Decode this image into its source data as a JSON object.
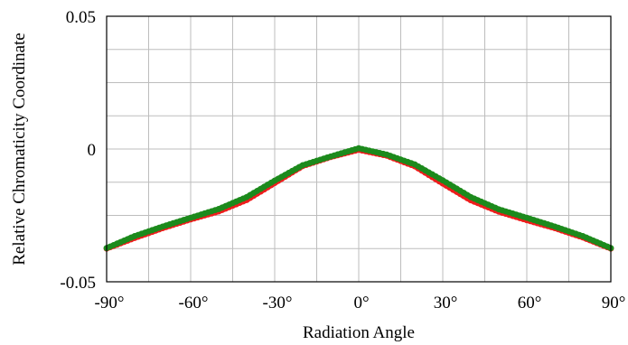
{
  "chart_data": {
    "type": "line",
    "xlabel": "Radiation Angle",
    "ylabel": "Relative Chromaticity Coordinate",
    "xlim": [
      -90,
      90
    ],
    "ylim": [
      -0.05,
      0.05
    ],
    "x_ticks": [
      -90,
      -60,
      -30,
      0,
      30,
      60,
      90
    ],
    "x_tick_labels": [
      "-90°",
      "-60°",
      "-30°",
      "0°",
      "30°",
      "60°",
      "90°"
    ],
    "y_ticks": [
      0.05,
      0,
      -0.05
    ],
    "y_tick_labels": [
      "0.05",
      "0",
      "-0.05"
    ],
    "grid": true,
    "grid_x_step": 15,
    "grid_y_step": 0.0125,
    "legend": "none",
    "series": [
      {
        "color": "#ee1c1c",
        "x": [
          -90,
          -80,
          -70,
          -60,
          -50,
          -40,
          -30,
          -20,
          -10,
          0,
          10,
          20,
          30,
          40,
          50,
          60,
          70,
          80,
          90
        ],
        "y": [
          -0.0375,
          -0.0335,
          -0.0298,
          -0.0265,
          -0.0235,
          -0.0192,
          -0.0128,
          -0.0064,
          -0.003,
          -0.0003,
          -0.0025,
          -0.0065,
          -0.013,
          -0.0193,
          -0.0236,
          -0.0268,
          -0.0298,
          -0.0333,
          -0.0375
        ]
      },
      {
        "color": "#1c8a1c",
        "x": [
          -90,
          -80,
          -70,
          -60,
          -50,
          -40,
          -30,
          -20,
          -10,
          0,
          10,
          20,
          30,
          40,
          50,
          60,
          70,
          80,
          90
        ],
        "y": [
          -0.0373,
          -0.0328,
          -0.0292,
          -0.0259,
          -0.0226,
          -0.0181,
          -0.0119,
          -0.0061,
          -0.0028,
          0.0003,
          -0.0021,
          -0.0058,
          -0.0118,
          -0.0181,
          -0.0227,
          -0.0259,
          -0.0292,
          -0.0328,
          -0.0373
        ]
      }
    ]
  }
}
